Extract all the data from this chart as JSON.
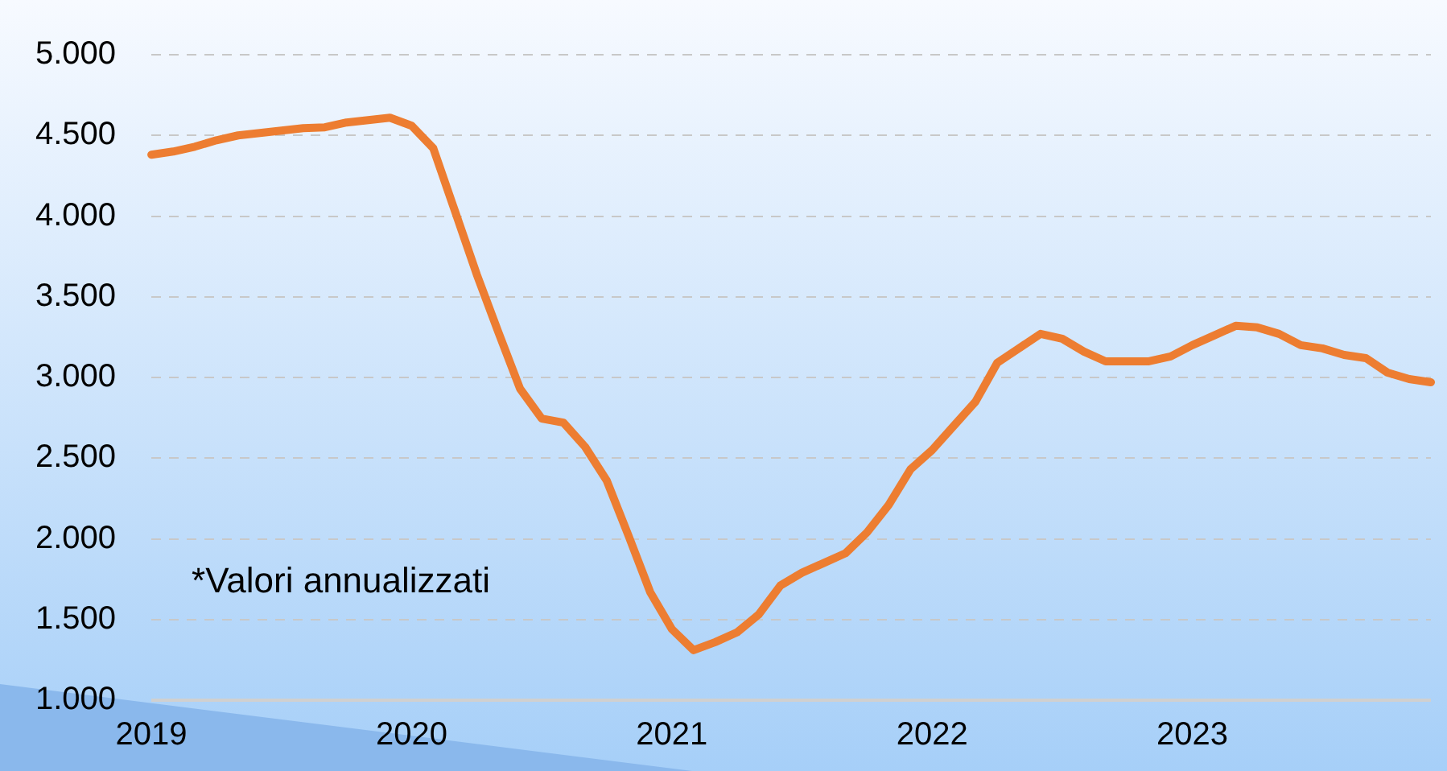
{
  "chart_data": {
    "type": "line",
    "categories": [
      "2019",
      null,
      null,
      null,
      null,
      null,
      null,
      null,
      null,
      null,
      null,
      null,
      "2020",
      null,
      null,
      null,
      null,
      null,
      null,
      null,
      null,
      null,
      null,
      null,
      "2021",
      null,
      null,
      null,
      null,
      null,
      null,
      null,
      null,
      null,
      null,
      null,
      "2022",
      null,
      null,
      null,
      null,
      null,
      null,
      null,
      null,
      null,
      null,
      null,
      "2023",
      null,
      null,
      null,
      null,
      null,
      null,
      null,
      null,
      null,
      null,
      null
    ],
    "series": [
      {
        "color": "#ed7d31",
        "values": [
          4380,
          4400,
          4430,
          4470,
          4500,
          4515,
          4530,
          4545,
          4550,
          4580,
          4595,
          4610,
          4560,
          4420,
          4030,
          3640,
          3280,
          2930,
          2745,
          2720,
          2570,
          2360,
          2020,
          1670,
          1440,
          1310,
          1360,
          1420,
          1530,
          1710,
          1790,
          1850,
          1910,
          2040,
          2210,
          2430,
          2550,
          2700,
          2850,
          3090,
          3180,
          3270,
          3240,
          3160,
          3100,
          3100,
          3100,
          3130,
          3200,
          3260,
          3320,
          3310,
          3270,
          3200,
          3180,
          3140,
          3120,
          3030,
          2990,
          2970
        ]
      }
    ],
    "ylim": [
      1000,
      5000
    ],
    "yticks": [
      {
        "value": 1000,
        "label": "1.000"
      },
      {
        "value": 1500,
        "label": "1.500"
      },
      {
        "value": 2000,
        "label": "2.000"
      },
      {
        "value": 2500,
        "label": "2.500"
      },
      {
        "value": 3000,
        "label": "3.000"
      },
      {
        "value": 3500,
        "label": "3.500"
      },
      {
        "value": 4000,
        "label": "4.000"
      },
      {
        "value": 4500,
        "label": "4.500"
      },
      {
        "value": 5000,
        "label": "5.000"
      }
    ],
    "grid": "y",
    "legend": false,
    "marker": "none",
    "line_style": "solid",
    "annotations": [
      "*Valori annualizzati"
    ]
  }
}
